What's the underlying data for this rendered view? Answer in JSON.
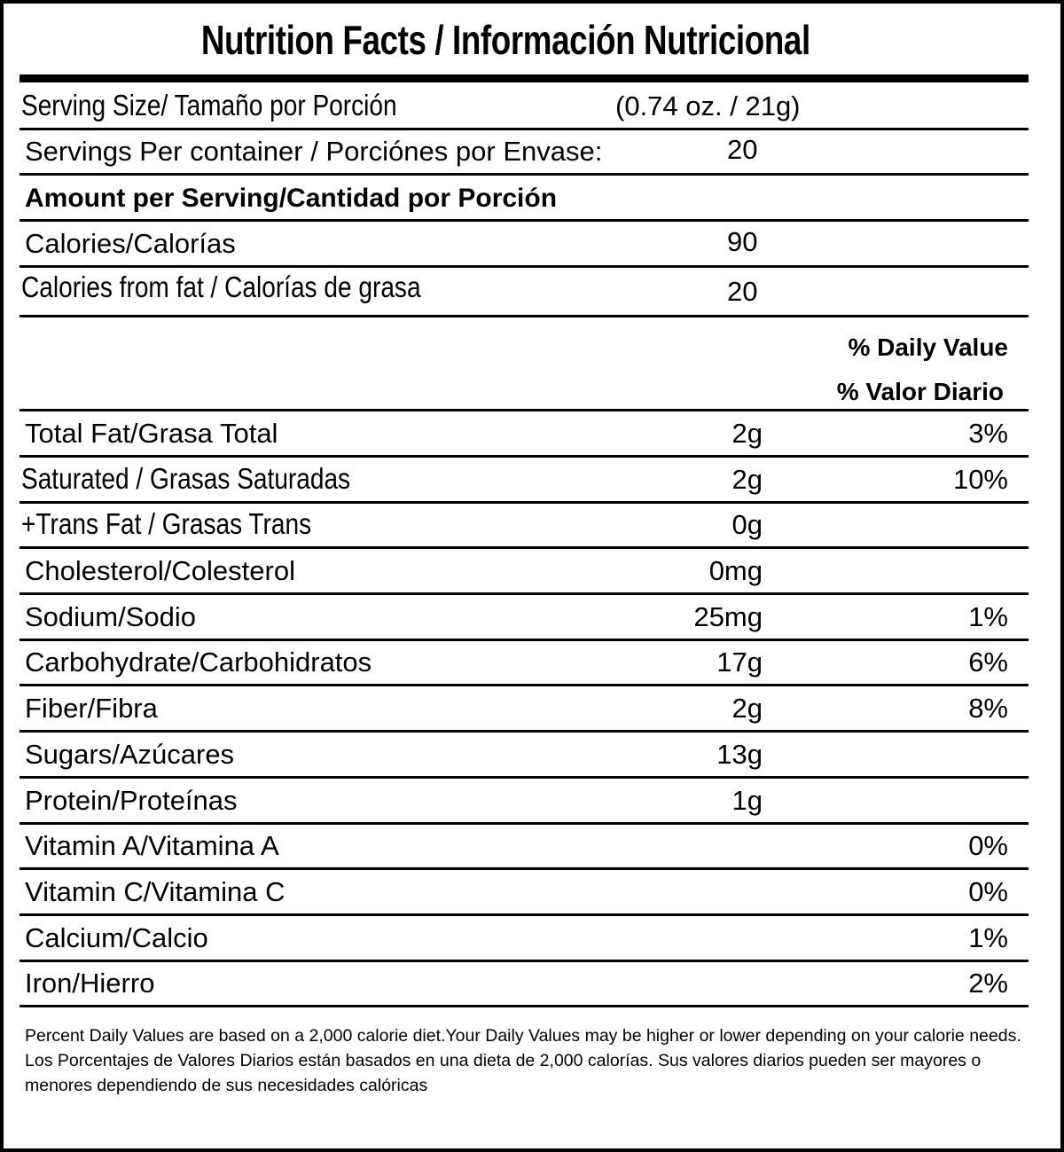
{
  "title": "Nutrition Facts / Información Nutricional",
  "serving_size": {
    "label": "Serving Size/ Tamaño por Porción",
    "value": "(0.74 oz. / 21g)"
  },
  "servings_per_container": {
    "label": "Servings Per container / Porciónes por Envase:",
    "value": "20"
  },
  "amount_header": "Amount per Serving/Cantidad por Porción",
  "calories": {
    "label": "Calories/Calorías",
    "value": "90"
  },
  "calories_from_fat": {
    "label": "Calories from fat / Calorías de grasa",
    "value": "20"
  },
  "daily_value_header": {
    "line1": "% Daily Value",
    "line2": "% Valor Diario"
  },
  "nutrients": [
    {
      "label": "Total Fat/Grasa Total",
      "amount": "2g",
      "percent": "3%"
    },
    {
      "label": "Saturated / Grasas Saturadas",
      "amount": "2g",
      "percent": "10%"
    },
    {
      "label": "+Trans Fat / Grasas Trans",
      "amount": "0g",
      "percent": ""
    },
    {
      "label": "Cholesterol/Colesterol",
      "amount": "0mg",
      "percent": ""
    },
    {
      "label": "Sodium/Sodio",
      "amount": "25mg",
      "percent": "1%"
    },
    {
      "label": "Carbohydrate/Carbohidratos",
      "amount": "17g",
      "percent": "6%"
    },
    {
      "label": "Fiber/Fibra",
      "amount": "2g",
      "percent": "8%"
    },
    {
      "label": "Sugars/Azúcares",
      "amount": "13g",
      "percent": ""
    },
    {
      "label": "Protein/Proteínas",
      "amount": "1g",
      "percent": ""
    },
    {
      "label": "Vitamin A/Vitamina A",
      "amount": "",
      "percent": "0%"
    },
    {
      "label": "Vitamin C/Vitamina C",
      "amount": "",
      "percent": "0%"
    },
    {
      "label": "Calcium/Calcio",
      "amount": "",
      "percent": "1%"
    },
    {
      "label": "Iron/Hierro",
      "amount": "",
      "percent": "2%"
    }
  ],
  "footer": {
    "english": "Percent Daily Values are based on a 2,000 calorie diet.Your Daily Values may be higher or lower depending on your calorie needs.",
    "spanish": "Los Porcentajes de Valores Diarios están basados en una dieta de 2,000 calorías. Sus valores diarios pueden ser mayores o menores dependiendo de sus necesidades calóricas"
  }
}
